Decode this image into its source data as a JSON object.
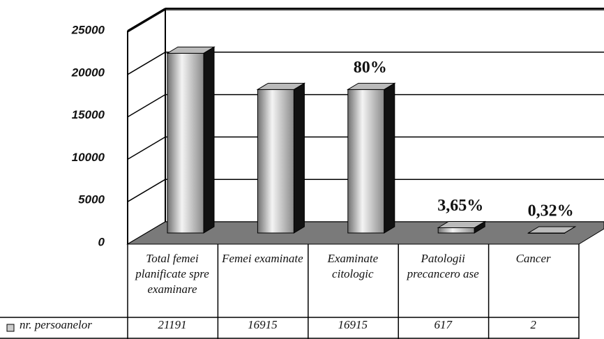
{
  "chart_data": {
    "type": "bar3d",
    "categories": [
      "Total femei planificate spre examinare",
      "Femei examinate",
      "Examinate citologic",
      "Patologii precancero ase",
      "Cancer"
    ],
    "series": [
      {
        "name": "nr. persoanelor",
        "color": "#a8a8a8",
        "values": [
          21191,
          16915,
          16915,
          617,
          2
        ]
      }
    ],
    "annotations": [
      null,
      null,
      "80%",
      "3,65%",
      "0,32%"
    ],
    "ylim": [
      0,
      25000
    ],
    "yticks": [
      0,
      5000,
      10000,
      15000,
      20000,
      25000
    ],
    "grid": true
  }
}
